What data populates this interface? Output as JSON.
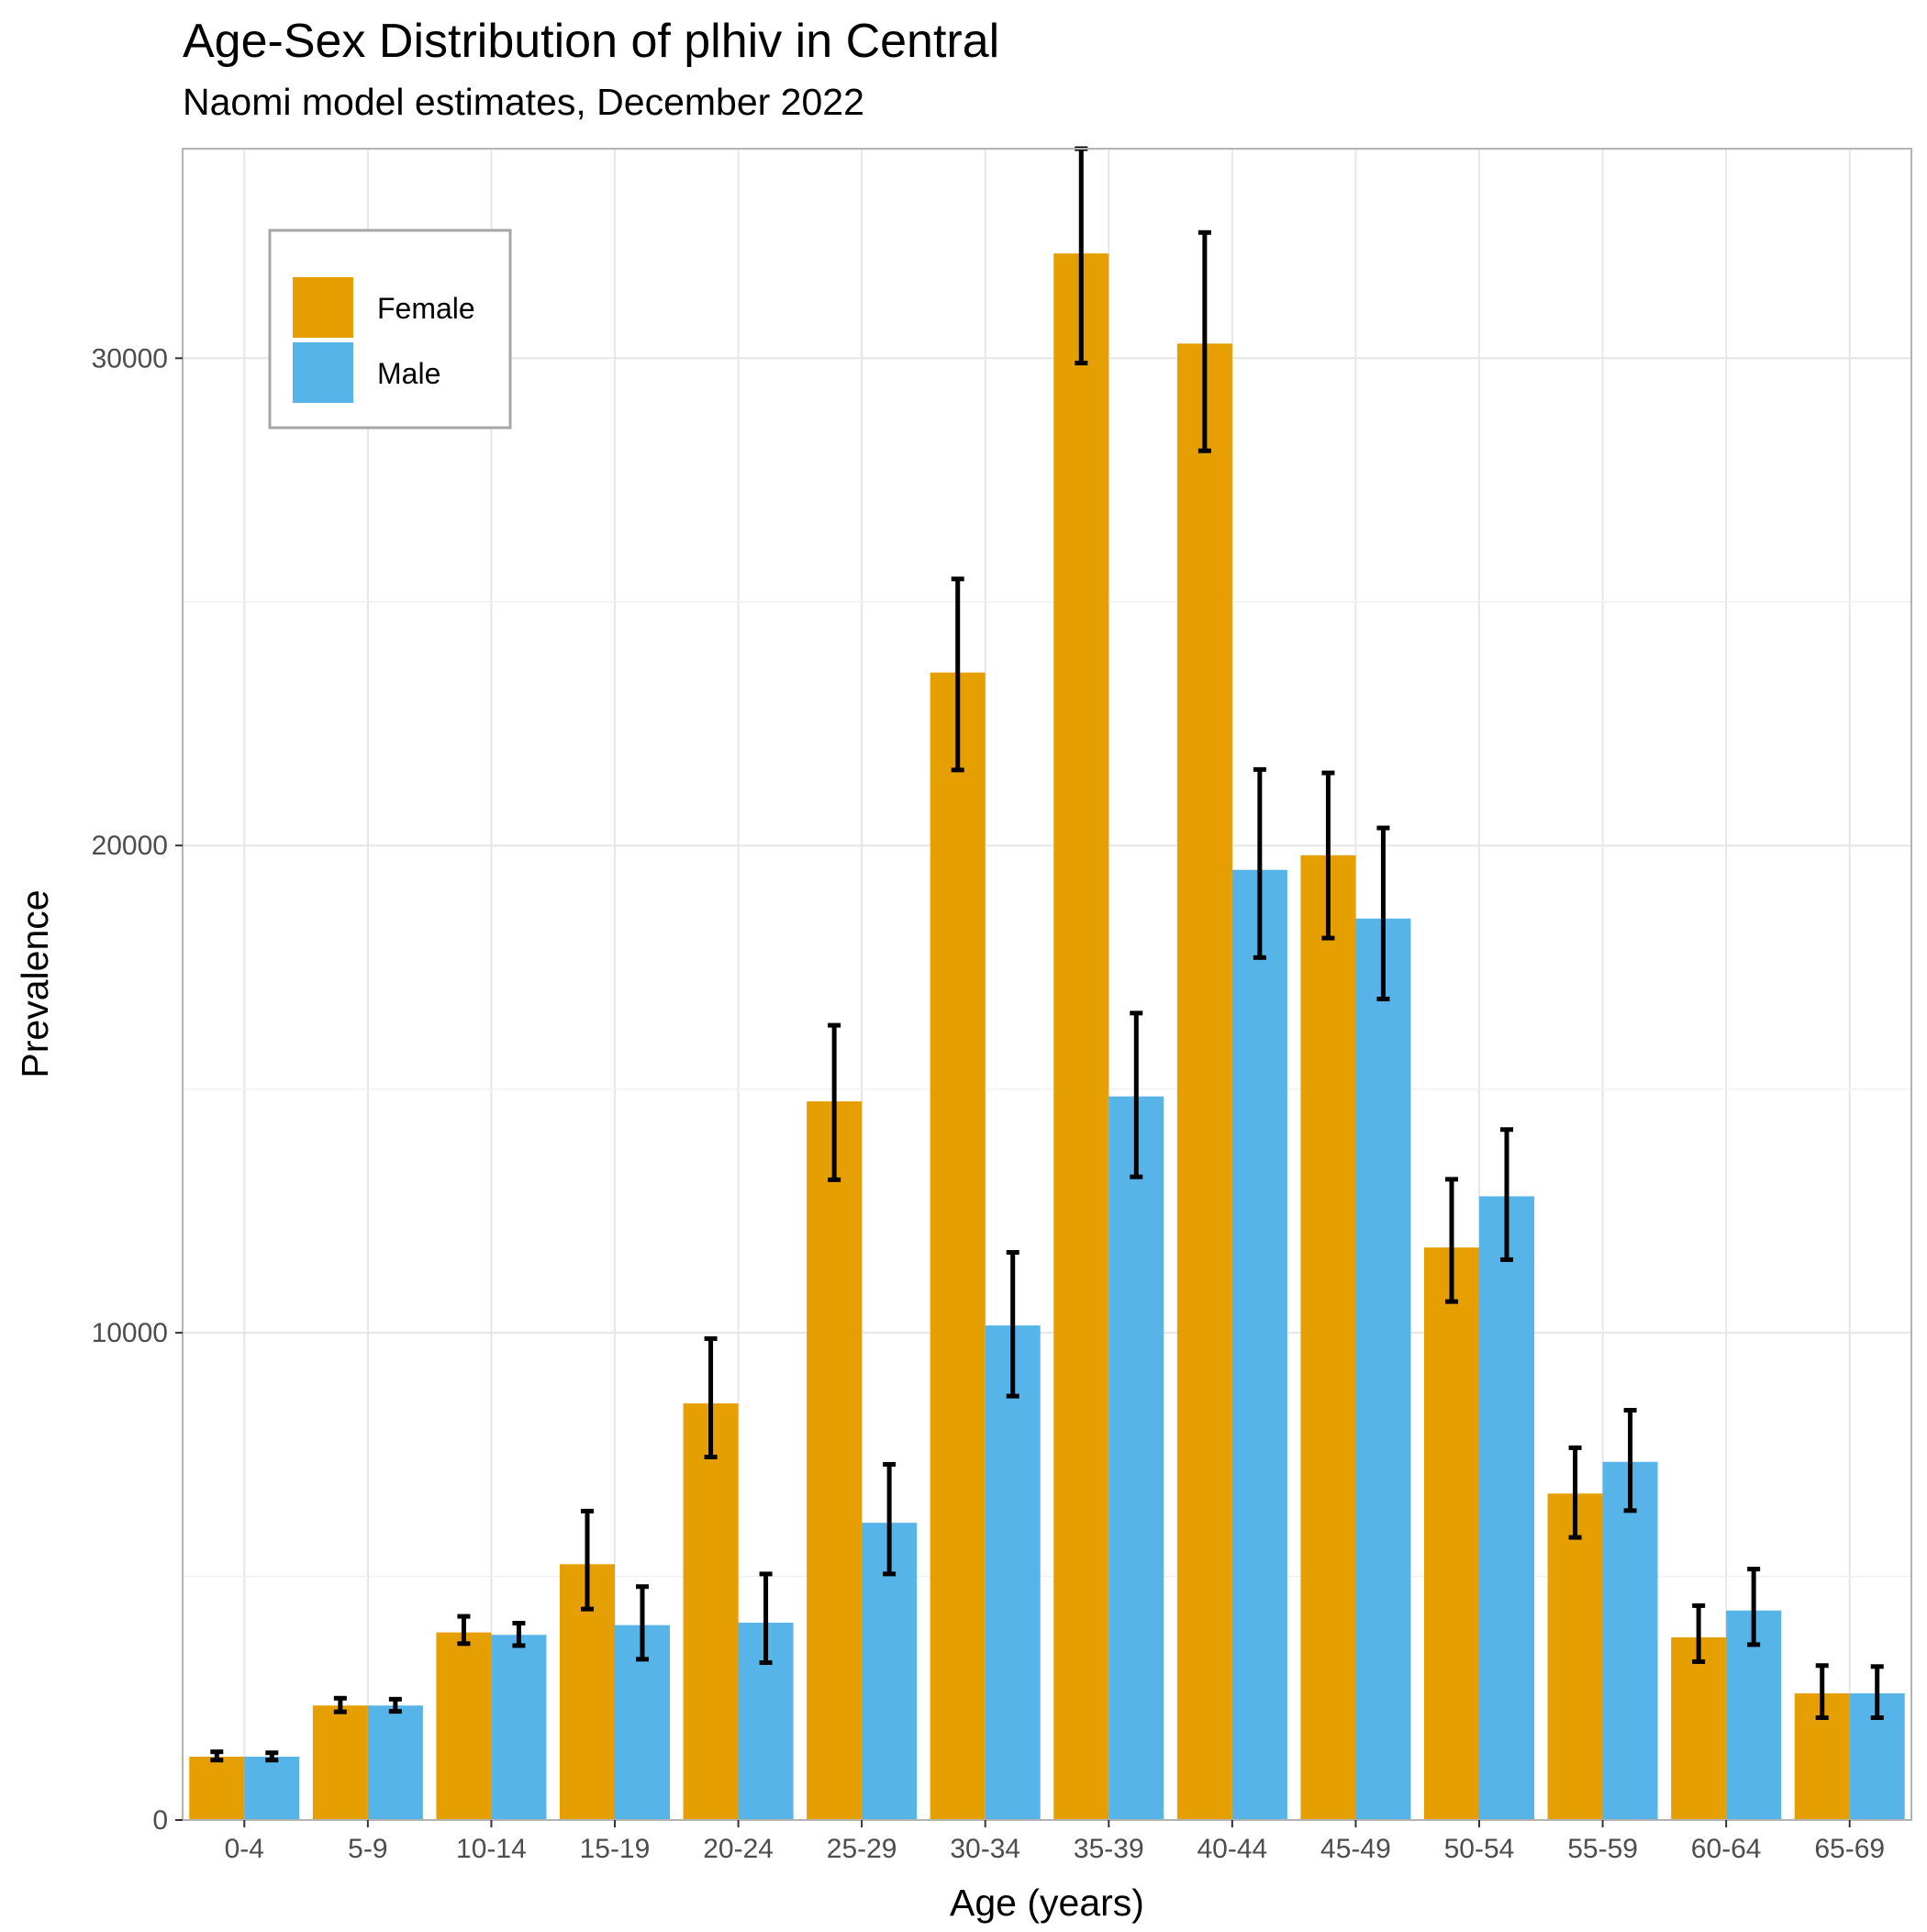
{
  "chart_data": {
    "type": "bar",
    "title": "Age-Sex Distribution of plhiv in Central",
    "subtitle": "Naomi model estimates, December 2022",
    "xlabel": "Age (years)",
    "ylabel": "Prevalence",
    "ylim": [
      0,
      34300
    ],
    "yticks": [
      0,
      10000,
      20000,
      30000
    ],
    "ytick_labels": [
      "0",
      "10000",
      "20000",
      "30000"
    ],
    "grid": true,
    "legend": {
      "position": "top-left",
      "entries": [
        "Female",
        "Male"
      ]
    },
    "categories": [
      "0-4",
      "5-9",
      "10-14",
      "15-19",
      "20-24",
      "25-29",
      "30-34",
      "35-39",
      "40-44",
      "45-49",
      "50-54",
      "55-59",
      "60-64",
      "65-69"
    ],
    "series": [
      {
        "name": "Female",
        "color": "#E69F00",
        "values": [
          1300,
          2350,
          3850,
          5250,
          8550,
          14750,
          23550,
          32150,
          30300,
          19800,
          11750,
          6700,
          3750,
          2600
        ],
        "lower": [
          1230,
          2220,
          3620,
          4330,
          7450,
          13140,
          21550,
          29900,
          28100,
          18100,
          10640,
          5800,
          3250,
          2100
        ],
        "upper": [
          1400,
          2500,
          4180,
          6340,
          9880,
          16310,
          25470,
          34300,
          32580,
          21490,
          13150,
          7640,
          4400,
          3170
        ]
      },
      {
        "name": "Male",
        "color": "#56B4E9",
        "values": [
          1300,
          2350,
          3800,
          4000,
          4050,
          6100,
          10150,
          14850,
          19500,
          18500,
          12800,
          7350,
          4300,
          2600
        ],
        "lower": [
          1230,
          2230,
          3580,
          3300,
          3230,
          5050,
          8700,
          13200,
          17700,
          16850,
          11500,
          6350,
          3600,
          2100
        ],
        "upper": [
          1380,
          2480,
          4040,
          4790,
          5050,
          7300,
          11650,
          16560,
          21560,
          20360,
          14170,
          8410,
          5150,
          3150
        ]
      }
    ]
  }
}
